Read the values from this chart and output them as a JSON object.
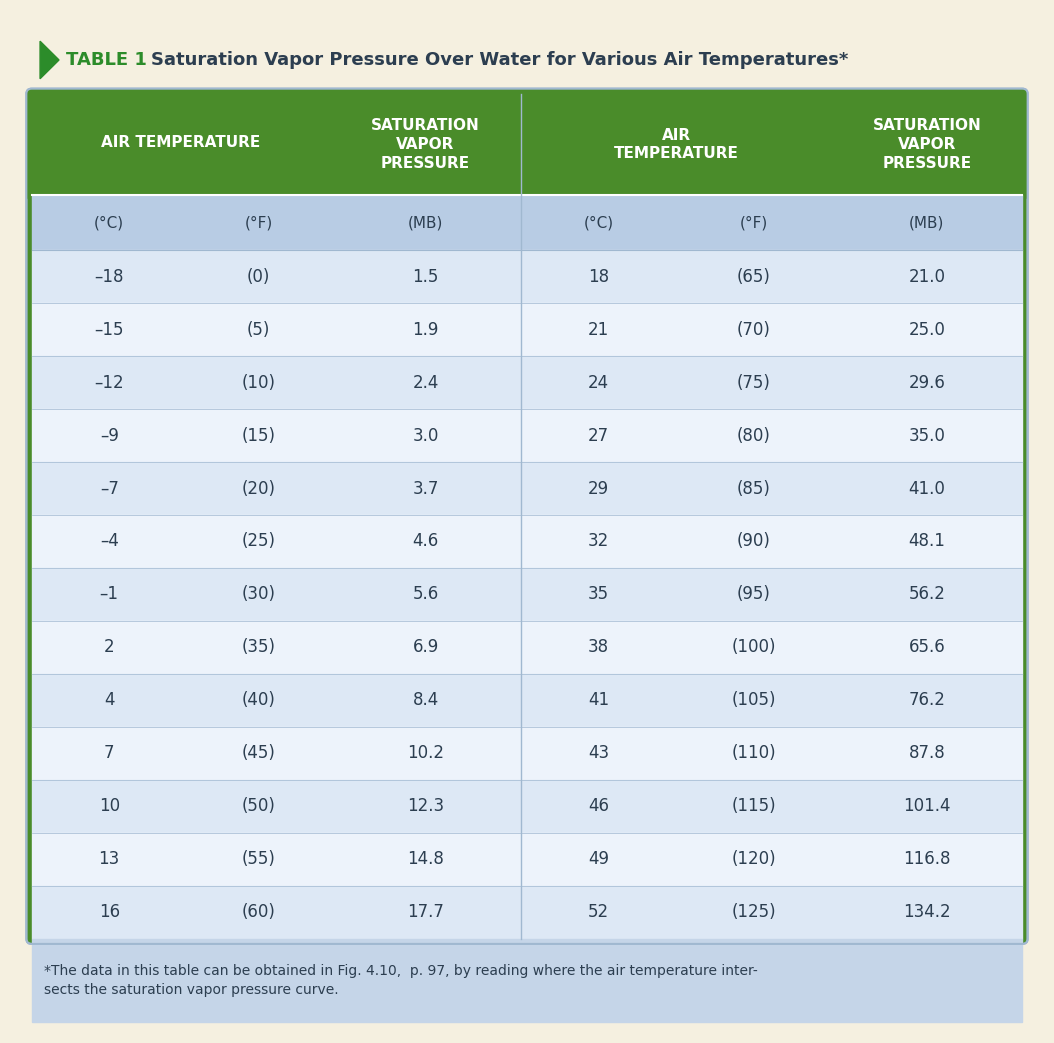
{
  "title_prefix": "TABLE 1",
  "title_text": "Saturation Vapor Pressure Over Water for Various Air Temperatures*",
  "header1_col1": "AIR TEMPERATURE",
  "header1_col3": "SATURATION\nVAPOR\nPRESSURE",
  "header1_col4": "AIR\nTEMPERATURE",
  "header1_col6": "SATURATION\nVAPOR\nPRESSURE",
  "subheader": [
    "(°C)",
    "(°F)",
    "(MB)",
    "(°C)",
    "(°F)",
    "(MB)"
  ],
  "rows": [
    [
      "–18",
      "(0)",
      "1.5",
      "18",
      "(65)",
      "21.0"
    ],
    [
      "–15",
      "(5)",
      "1.9",
      "21",
      "(70)",
      "25.0"
    ],
    [
      "–12",
      "(10)",
      "2.4",
      "24",
      "(75)",
      "29.6"
    ],
    [
      "–9",
      "(15)",
      "3.0",
      "27",
      "(80)",
      "35.0"
    ],
    [
      "–7",
      "(20)",
      "3.7",
      "29",
      "(85)",
      "41.0"
    ],
    [
      "–4",
      "(25)",
      "4.6",
      "32",
      "(90)",
      "48.1"
    ],
    [
      "–1",
      "(30)",
      "5.6",
      "35",
      "(95)",
      "56.2"
    ],
    [
      "2",
      "(35)",
      "6.9",
      "38",
      "(100)",
      "65.6"
    ],
    [
      "4",
      "(40)",
      "8.4",
      "41",
      "(105)",
      "76.2"
    ],
    [
      "7",
      "(45)",
      "10.2",
      "43",
      "(110)",
      "87.8"
    ],
    [
      "10",
      "(50)",
      "12.3",
      "46",
      "(115)",
      "101.4"
    ],
    [
      "13",
      "(55)",
      "14.8",
      "49",
      "(120)",
      "116.8"
    ],
    [
      "16",
      "(60)",
      "17.7",
      "52",
      "(125)",
      "134.2"
    ]
  ],
  "footnote": "*The data in this table can be obtained in Fig. 4.10,  p. 97, by reading where the air temperature inter-\nsects the saturation vapor pressure curve.",
  "bg_color": "#f5f0e0",
  "header_bg": "#4a8c2a",
  "header_text_color": "#ffffff",
  "subheader_bg": "#b8cce4",
  "row_odd_bg": "#dde8f5",
  "row_even_bg": "#edf3fb",
  "footnote_bg": "#c5d5e8",
  "cell_text_color": "#2c3e50",
  "title_color": "#2c3e50",
  "title_prefix_color": "#2c8c2a",
  "border_color": "#a0b8d0",
  "triangle_color": "#2c8c2a"
}
